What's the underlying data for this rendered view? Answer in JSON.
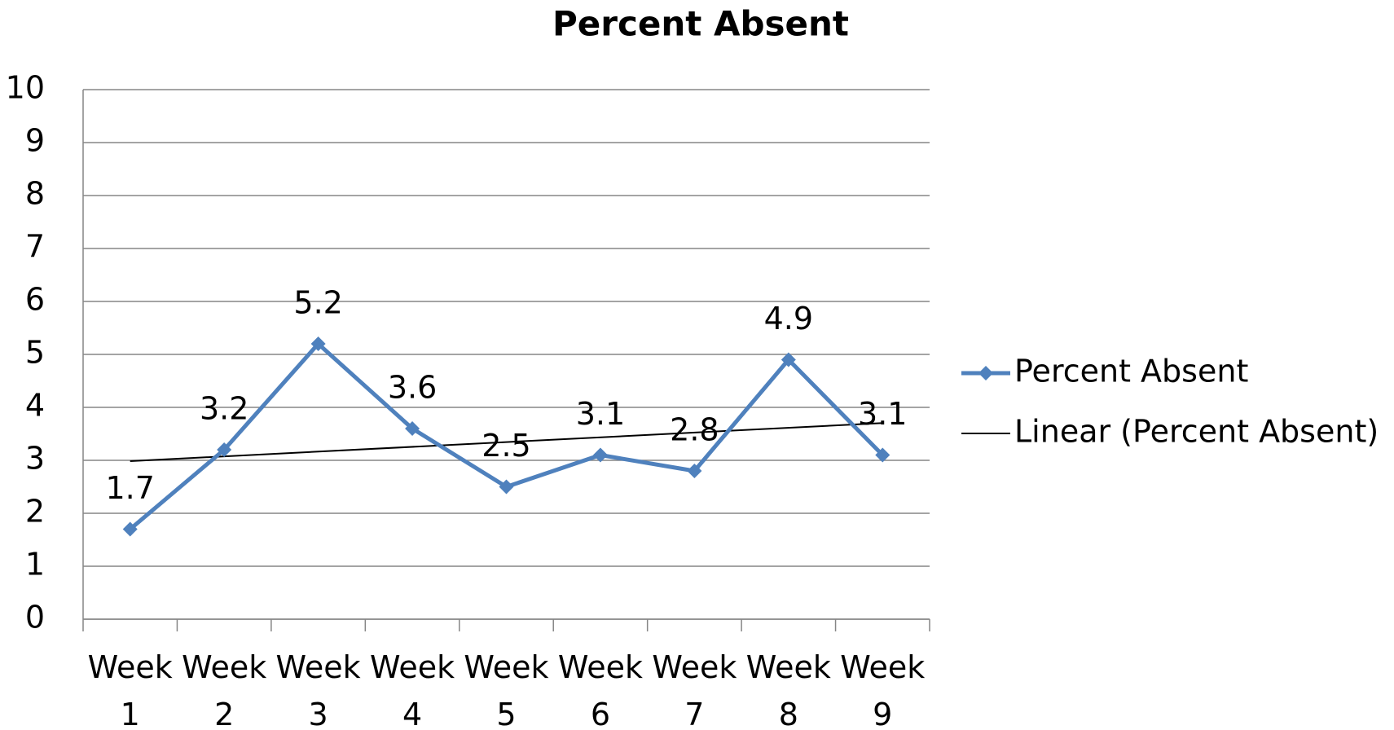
{
  "chart_data": {
    "type": "line",
    "title": "Percent Absent",
    "categories": [
      "Week 1",
      "Week 2",
      "Week 3",
      "Week 4",
      "Week 5",
      "Week 6",
      "Week 7",
      "Week 8",
      "Week 9"
    ],
    "series": [
      {
        "name": "Percent Absent",
        "color": "#4f81bd",
        "values": [
          1.7,
          3.2,
          5.2,
          3.6,
          2.5,
          3.1,
          2.8,
          4.9,
          3.1
        ]
      }
    ],
    "trendline": {
      "name": "Linear (Percent Absent)",
      "color": "#000000"
    },
    "ylim": [
      0,
      10
    ],
    "yticks": [
      0,
      1,
      2,
      3,
      4,
      5,
      6,
      7,
      8,
      9,
      10
    ],
    "grid": true,
    "legend": "right"
  }
}
